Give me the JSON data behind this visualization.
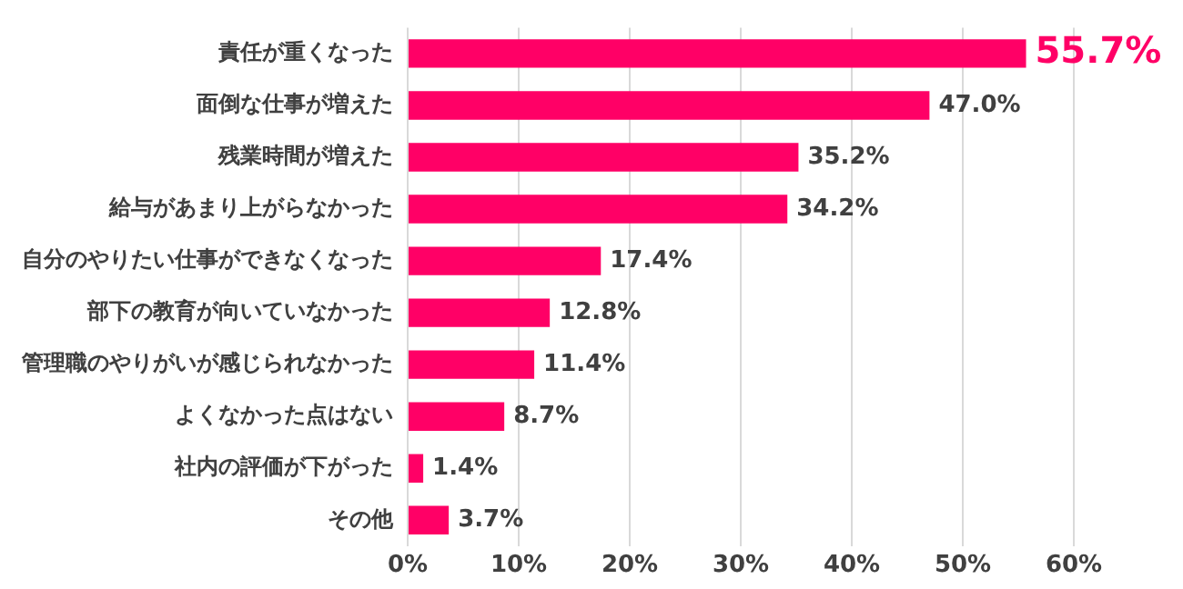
{
  "chart_data": {
    "type": "bar",
    "orientation": "horizontal",
    "categories": [
      "責任が重くなった",
      "面倒な仕事が増えた",
      "残業時間が増えた",
      "給与があまり上がらなかった",
      "自分のやりたい仕事ができなくなった",
      "部下の教育が向いていなかった",
      "管理職のやりがいが感じられなかった",
      "よくなかった点はない",
      "社内の評価が下がった",
      "その他"
    ],
    "values": [
      55.7,
      47.0,
      35.2,
      34.2,
      17.4,
      12.8,
      11.4,
      8.7,
      1.4,
      3.7
    ],
    "value_labels": [
      "55.7%",
      "47.0%",
      "35.2%",
      "34.2%",
      "17.4%",
      "12.8%",
      "11.4%",
      "8.7%",
      "1.4%",
      "3.7%"
    ],
    "color": "#ff0066",
    "xlim": [
      0,
      60
    ],
    "xticks": [
      {
        "value": 0,
        "label": "0%"
      },
      {
        "value": 10,
        "label": "10%"
      },
      {
        "value": 20,
        "label": "20%"
      },
      {
        "value": 30,
        "label": "30%"
      },
      {
        "value": 40,
        "label": "40%"
      },
      {
        "value": 50,
        "label": "50%"
      },
      {
        "value": 60,
        "label": "60%"
      }
    ],
    "grid": "x"
  }
}
